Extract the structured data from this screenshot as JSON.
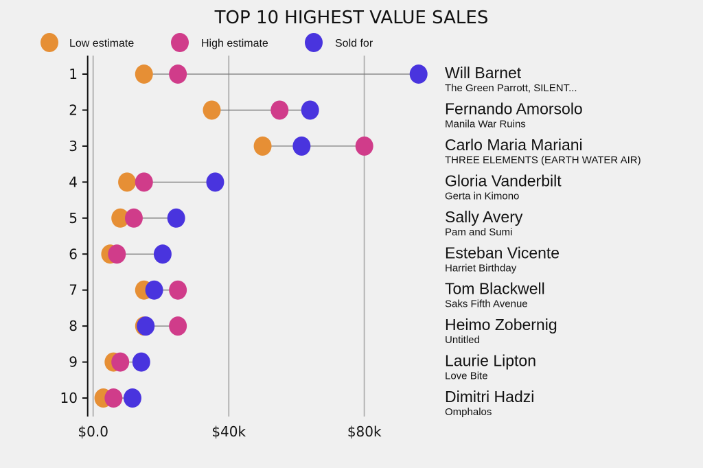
{
  "chart_data": {
    "type": "dumbbell",
    "title": "TOP 10 HIGHEST VALUE SALES",
    "xlabel": "",
    "ylabel": "",
    "xlim": [
      0,
      100000
    ],
    "xticks": [
      0,
      40000,
      80000
    ],
    "xtick_labels": [
      "$0.0",
      "$40k",
      "$80k"
    ],
    "grid": "vertical",
    "legend_position": "top-left",
    "series": [
      {
        "name": "Low estimate",
        "key": "low",
        "color": "#e68f35"
      },
      {
        "name": "High estimate",
        "key": "high",
        "color": "#d03c8a"
      },
      {
        "name": "Sold for",
        "key": "sold",
        "color": "#4934de"
      }
    ],
    "rows": [
      {
        "rank": "1",
        "artist": "Will Barnet",
        "artwork": "The Green Parrott, SILENT...",
        "low": 15000,
        "high": 25000,
        "sold": 96000
      },
      {
        "rank": "2",
        "artist": "Fernando Amorsolo",
        "artwork": "Manila War Ruins",
        "low": 35000,
        "high": 55000,
        "sold": 64000
      },
      {
        "rank": "3",
        "artist": "Carlo Maria Mariani",
        "artwork": "THREE ELEMENTS (EARTH WATER AIR)",
        "low": 50000,
        "high": 80000,
        "sold": 61500
      },
      {
        "rank": "4",
        "artist": "Gloria Vanderbilt",
        "artwork": "Gerta in Kimono",
        "low": 10000,
        "high": 15000,
        "sold": 36000
      },
      {
        "rank": "5",
        "artist": "Sally Avery",
        "artwork": "Pam and Sumi",
        "low": 8000,
        "high": 12000,
        "sold": 24500
      },
      {
        "rank": "6",
        "artist": "Esteban Vicente",
        "artwork": "Harriet Birthday",
        "low": 5000,
        "high": 7000,
        "sold": 20500
      },
      {
        "rank": "7",
        "artist": "Tom Blackwell",
        "artwork": "Saks Fifth Avenue",
        "low": 15000,
        "high": 25000,
        "sold": 18000
      },
      {
        "rank": "8",
        "artist": "Heimo Zobernig",
        "artwork": "Untitled",
        "low": 15000,
        "high": 25000,
        "sold": 15500
      },
      {
        "rank": "9",
        "artist": "Laurie Lipton",
        "artwork": "Love Bite",
        "low": 6000,
        "high": 8000,
        "sold": 14200
      },
      {
        "rank": "10",
        "artist": "Dimitri Hadzi",
        "artwork": "Omphalos",
        "low": 3000,
        "high": 6000,
        "sold": 11600
      }
    ]
  }
}
